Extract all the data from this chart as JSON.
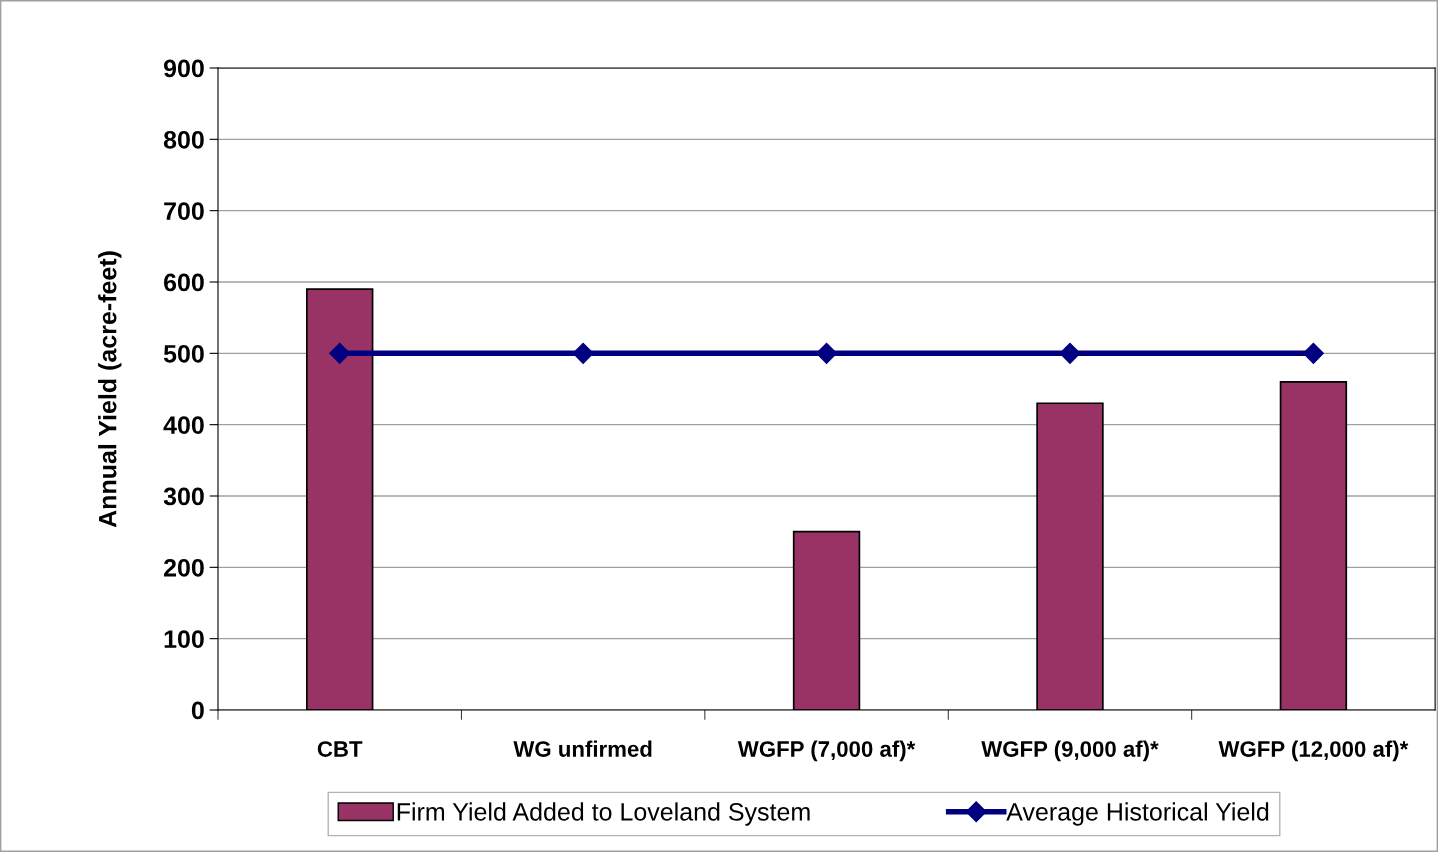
{
  "chart_data": {
    "type": "bar",
    "ylabel": "Annual Yield (acre-feet)",
    "categories": [
      "CBT",
      "WG unfirmed",
      "WGFP (7,000 af)*",
      "WGFP (9,000 af)*",
      "WGFP (12,000 af)*"
    ],
    "series": [
      {
        "name": "Firm Yield Added to Loveland System",
        "color": "#993366",
        "values": [
          590,
          null,
          250,
          430,
          460
        ]
      },
      {
        "name": "Average Historical Yield",
        "type": "line",
        "color": "#000080",
        "marker": "diamond",
        "values": [
          500,
          500,
          500,
          500,
          500
        ]
      }
    ],
    "ylim": [
      0,
      900
    ],
    "yticks": [
      0,
      100,
      200,
      300,
      400,
      500,
      600,
      700,
      800,
      900
    ],
    "grid": "y",
    "legend": "bottom"
  }
}
